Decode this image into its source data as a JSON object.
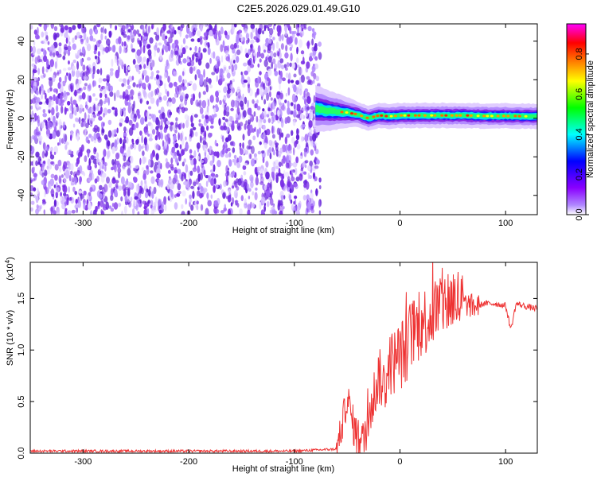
{
  "title": "C2E5.2026.029.01.49.G10",
  "colors": {
    "snr_line": "#ee3333",
    "noise_dots": "#7a2ee6",
    "frame": "#000000"
  },
  "chart_data": [
    {
      "type": "heatmap",
      "name": "spectrogram",
      "xlabel": "Height of straight line (km)",
      "ylabel": "Frequency (Hz)",
      "xlim": [
        -350,
        130
      ],
      "ylim": [
        -50,
        49
      ],
      "xticks": [
        -300,
        -200,
        -100,
        0,
        100
      ],
      "yticks": [
        -40,
        -20,
        0,
        20,
        40
      ],
      "noise_region_x": [
        -350,
        -80
      ],
      "signal_ridge": {
        "x": [
          -80,
          -70,
          -60,
          -50,
          -40,
          -30,
          -20,
          -10,
          0,
          20,
          40,
          60,
          80,
          100,
          130
        ],
        "y": [
          5,
          4,
          3.5,
          3,
          2,
          0,
          1.5,
          1,
          1.5,
          1.5,
          1.5,
          1.5,
          1.2,
          1.2,
          1
        ]
      },
      "colorbar": {
        "label": "Normalized spectral amplitude",
        "range": [
          0,
          0.95
        ],
        "ticks": [
          "0.0",
          "0.2",
          "0.4",
          "0.6",
          "0.8"
        ],
        "stops": [
          "#ffffff",
          "#8a00ff",
          "#0000ff",
          "#00ffff",
          "#00ff00",
          "#ffff00",
          "#ff7f00",
          "#ff0000",
          "#ff00ff"
        ]
      },
      "grid": false,
      "legend": "none"
    },
    {
      "type": "line",
      "name": "snr",
      "xlabel": "Height of straight line (km)",
      "ylabel": "SNR (10 * v/v)",
      "multiplier_label": "(x10",
      "multiplier_exponent": "4",
      "multiplier_close": ")",
      "xlim": [
        -350,
        130
      ],
      "ylim": [
        0,
        1.85
      ],
      "xticks": [
        -300,
        -200,
        -100,
        0,
        100
      ],
      "yticks": [
        "0.0",
        "0.5",
        "1.0",
        "1.5"
      ],
      "ytick_values": [
        0,
        0.5,
        1.0,
        1.5
      ],
      "series": [
        {
          "x": [
            -350,
            -100,
            -60,
            -55,
            -50,
            -45,
            -40,
            -35,
            -30,
            -25,
            -20,
            -15,
            -10,
            -5,
            0,
            5,
            10,
            20,
            30,
            40,
            50,
            60,
            70,
            80,
            90,
            100,
            105,
            110,
            120,
            130
          ],
          "values": [
            0.02,
            0.02,
            0.04,
            0.25,
            0.55,
            0.3,
            0.15,
            0.1,
            0.35,
            0.55,
            0.75,
            0.65,
            0.85,
            0.9,
            0.95,
            1.0,
            1.15,
            1.25,
            1.35,
            1.45,
            1.5,
            1.45,
            1.42,
            1.45,
            1.45,
            1.43,
            1.2,
            1.45,
            1.42,
            1.4
          ]
        }
      ],
      "grid": false,
      "legend": "none"
    }
  ]
}
